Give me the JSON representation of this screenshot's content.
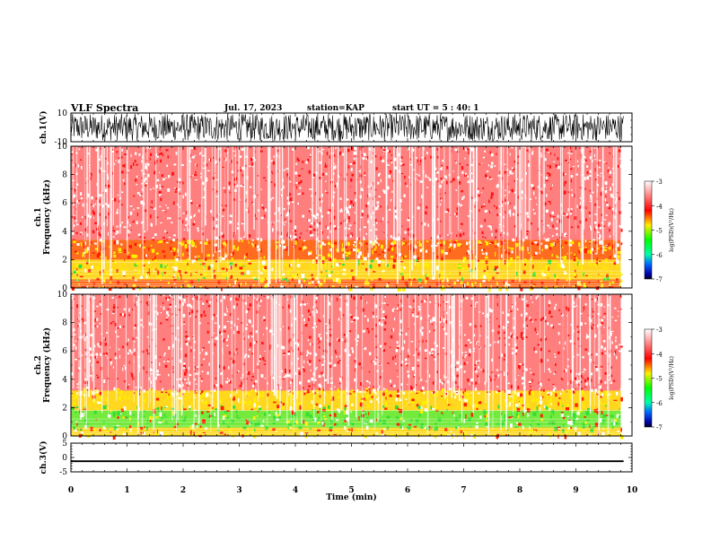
{
  "header": {
    "title": "VLF Spectra",
    "date": "Jul. 17, 2023",
    "station": "station=KAP",
    "start_ut": "start UT = 5 : 40: 1"
  },
  "colors": {
    "waveform": "#000000",
    "background": "#ffffff",
    "colormap": [
      "#ffffff",
      "#ff0000",
      "#ffff00",
      "#00ff00",
      "#0000ff",
      "#000000"
    ]
  },
  "chart_data": [
    {
      "type": "line",
      "name": "ch1-waveform",
      "ylabel": "ch.1(V)",
      "ylim": [
        -10,
        10
      ],
      "y_ticks": [
        "10",
        "-10"
      ],
      "x": [
        0,
        10
      ],
      "content": "dense oscillating waveform filling most of the range"
    },
    {
      "type": "heatmap",
      "name": "ch1-spectrogram",
      "ylabel": "ch.1 Frequency (kHz)",
      "ylim": [
        0,
        10
      ],
      "y_ticks": [
        "0",
        "2",
        "4",
        "6",
        "8",
        "10"
      ],
      "xlim": [
        0,
        10
      ],
      "data_end_min": 9.8,
      "bands": [
        {
          "from_khz": 0,
          "to_khz": 0.6,
          "level": "yellow-red"
        },
        {
          "from_khz": 0.6,
          "to_khz": 2.0,
          "level": "yellow"
        },
        {
          "from_khz": 2.0,
          "to_khz": 3.4,
          "level": "yellow-red"
        },
        {
          "from_khz": 3.4,
          "to_khz": 10,
          "level": "red-white"
        }
      ],
      "colorbar": {
        "label": "log(PSD)(V²/Hz)",
        "ticks": [
          "-3",
          "-4",
          "-5",
          "-6",
          "-7"
        ],
        "range": [
          -7,
          -3
        ]
      }
    },
    {
      "type": "heatmap",
      "name": "ch2-spectrogram",
      "ylabel": "ch.2 Frequency (kHz)",
      "ylim": [
        0,
        10
      ],
      "y_ticks": [
        "0",
        "2",
        "4",
        "6",
        "8",
        "10"
      ],
      "xlim": [
        0,
        10
      ],
      "data_end_min": 9.8,
      "bands": [
        {
          "from_khz": 0,
          "to_khz": 0.6,
          "level": "yellow"
        },
        {
          "from_khz": 0.6,
          "to_khz": 1.8,
          "level": "green"
        },
        {
          "from_khz": 1.8,
          "to_khz": 3.2,
          "level": "yellow"
        },
        {
          "from_khz": 3.2,
          "to_khz": 10,
          "level": "red-white"
        }
      ],
      "colorbar": {
        "label": "log(PSD)(V²/Hz)",
        "ticks": [
          "-3",
          "-4",
          "-5",
          "-6",
          "-7"
        ],
        "range": [
          -7,
          -3
        ]
      }
    },
    {
      "type": "line",
      "name": "ch3-waveform",
      "ylabel": "ch.3(V)",
      "ylim": [
        -5,
        5
      ],
      "y_ticks": [
        "5",
        "0",
        "-5"
      ],
      "x": [
        0,
        10
      ],
      "content": "thick constant band near -1.3 V"
    }
  ],
  "x_axis": {
    "label": "Time (min)",
    "ticks": [
      "0",
      "1",
      "2",
      "3",
      "4",
      "5",
      "6",
      "7",
      "8",
      "9",
      "10"
    ]
  }
}
